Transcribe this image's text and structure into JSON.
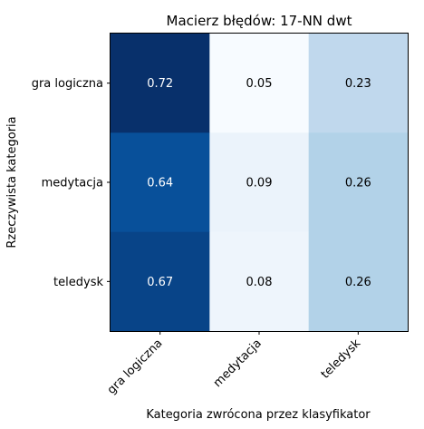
{
  "chart_data": {
    "type": "heatmap",
    "title": "Macierz błędów: 17-NN dwt",
    "xlabel": "Kategoria zwrócona przez klasyfikator",
    "ylabel": "Rzeczywista kategoria",
    "x_categories": [
      "gra logiczna",
      "medytacja",
      "teledysk"
    ],
    "y_categories": [
      "gra logiczna",
      "medytacja",
      "teledysk"
    ],
    "values": [
      [
        0.72,
        0.05,
        0.23
      ],
      [
        0.64,
        0.09,
        0.26
      ],
      [
        0.67,
        0.08,
        0.26
      ]
    ],
    "value_labels": [
      [
        "0.72",
        "0.05",
        "0.23"
      ],
      [
        "0.64",
        "0.09",
        "0.26"
      ],
      [
        "0.67",
        "0.08",
        "0.26"
      ]
    ],
    "colormap": "Blues",
    "vmin": 0.05,
    "vmax": 0.72
  }
}
